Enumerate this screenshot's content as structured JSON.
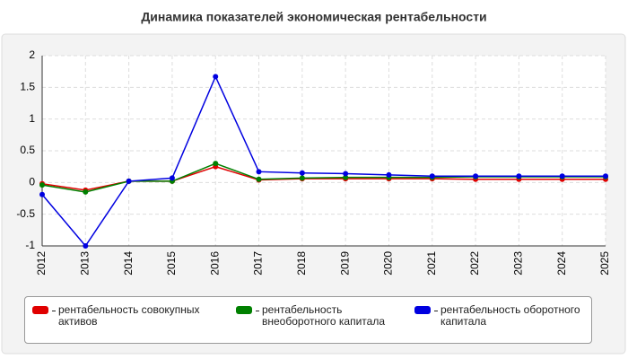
{
  "chart_data": {
    "type": "line",
    "title": "Динамика показателей экономическая рентабельности",
    "categories": [
      "2012",
      "2013",
      "2014",
      "2015",
      "2016",
      "2017",
      "2018",
      "2019",
      "2020",
      "2021",
      "2022",
      "2023",
      "2024",
      "2025"
    ],
    "series": [
      {
        "name": "рентабельность совокупных активов",
        "color": "#e00000",
        "values": [
          -0.02,
          -0.12,
          0.02,
          0.02,
          0.25,
          0.04,
          0.06,
          0.06,
          0.06,
          0.06,
          0.05,
          0.05,
          0.05,
          0.05
        ]
      },
      {
        "name": "рентабельность внеоборотного капитала",
        "color": "#008000",
        "values": [
          -0.04,
          -0.15,
          0.02,
          0.02,
          0.3,
          0.05,
          0.07,
          0.08,
          0.08,
          0.08,
          0.09,
          0.09,
          0.09,
          0.09
        ]
      },
      {
        "name": "рентабельность оборотного капитала",
        "color": "#0000e0",
        "values": [
          -0.19,
          -1,
          0.02,
          0.07,
          1.67,
          0.17,
          0.15,
          0.14,
          0.12,
          0.1,
          0.1,
          0.1,
          0.1,
          0.1
        ]
      }
    ],
    "ylim": [
      -1,
      2
    ],
    "yticks": [
      -1,
      -0.5,
      0,
      0.5,
      1,
      1.5,
      2
    ],
    "grid": true,
    "legend": "bottom"
  }
}
